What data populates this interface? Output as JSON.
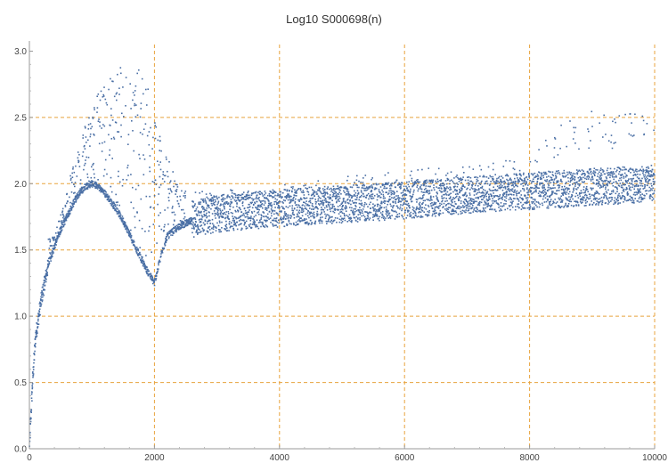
{
  "chart_data": {
    "type": "scatter",
    "title": "Log10 S000698(n)",
    "xlabel": "",
    "ylabel": "",
    "xlim": [
      0,
      10000
    ],
    "ylim": [
      0,
      3.05
    ],
    "x_ticks": [
      "0",
      "2000",
      "4000",
      "6000",
      "8000",
      "10000"
    ],
    "y_ticks": [
      "0.0",
      "0.5",
      "1.0",
      "1.5",
      "2.0",
      "2.5",
      "3.0"
    ],
    "x_gridlines": [
      2000,
      4000,
      6000,
      8000,
      10000
    ],
    "y_gridlines": [
      0.5,
      1.0,
      1.5,
      2.0,
      2.5
    ],
    "point_count": 10000,
    "marker_color": "#4a6fa5",
    "grid_color": "#e8a33c",
    "grid": "dashed",
    "legend": "none",
    "series": [
      {
        "points": [
          [
            1,
            0.0
          ],
          [
            50,
            0.5
          ],
          [
            100,
            0.85
          ],
          [
            200,
            1.15
          ],
          [
            300,
            1.38
          ],
          [
            400,
            1.52
          ],
          [
            500,
            1.65
          ],
          [
            600,
            1.75
          ],
          [
            700,
            1.85
          ],
          [
            800,
            1.93
          ],
          [
            900,
            1.98
          ],
          [
            1000,
            2.0
          ],
          [
            1100,
            1.98
          ],
          [
            1200,
            1.93
          ],
          [
            1300,
            1.87
          ],
          [
            1400,
            1.8
          ],
          [
            1500,
            1.72
          ],
          [
            1600,
            1.62
          ],
          [
            1700,
            1.52
          ],
          [
            1800,
            1.42
          ],
          [
            1900,
            1.33
          ],
          [
            2000,
            1.25
          ],
          [
            2100,
            1.45
          ],
          [
            2200,
            1.6
          ],
          [
            2400,
            1.68
          ],
          [
            2600,
            1.72
          ],
          [
            3000,
            1.76
          ],
          [
            4000,
            1.8
          ],
          [
            5000,
            1.83
          ],
          [
            6000,
            1.86
          ],
          [
            7000,
            1.9
          ],
          [
            8000,
            1.93
          ],
          [
            9000,
            1.96
          ],
          [
            10000,
            1.99
          ]
        ]
      },
      {
        "points": [
          [
            400,
            1.6
          ],
          [
            600,
            1.95
          ],
          [
            800,
            2.35
          ],
          [
            1000,
            2.6
          ],
          [
            1200,
            2.78
          ],
          [
            1400,
            2.87
          ],
          [
            1600,
            2.9
          ],
          [
            1800,
            2.85
          ],
          [
            2000,
            2.6
          ],
          [
            2200,
            2.25
          ],
          [
            2400,
            1.95
          ]
        ]
      },
      {
        "points": [
          [
            3000,
            1.95
          ],
          [
            4000,
            2.0
          ],
          [
            5000,
            2.05
          ],
          [
            6000,
            2.1
          ],
          [
            7000,
            2.15
          ],
          [
            8000,
            2.2
          ],
          [
            8500,
            2.45
          ],
          [
            9000,
            2.55
          ],
          [
            9500,
            2.55
          ],
          [
            10000,
            2.55
          ]
        ]
      }
    ]
  }
}
